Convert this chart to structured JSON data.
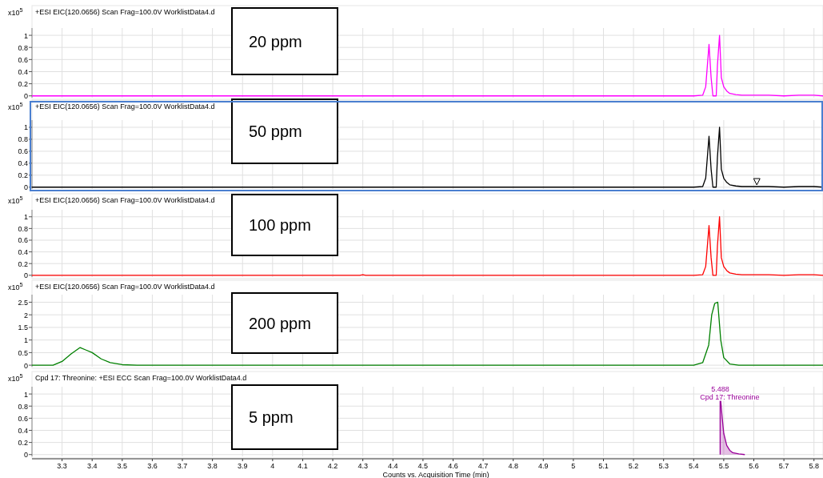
{
  "chart_data": [
    {
      "type": "line",
      "title": "+ESI EIC(120.0656) Scan Frag=100.0V WorklistData4.d",
      "ylabel": "x10$^{5}$",
      "annotations": [
        "20 ppm"
      ],
      "xlim": [
        3.2,
        5.83
      ],
      "xticks": [
        3.3,
        3.4,
        3.5,
        3.6,
        3.7,
        3.8,
        3.9,
        4,
        4.1,
        4.2,
        4.3,
        4.4,
        4.5,
        4.6,
        4.7,
        4.8,
        4.9,
        5,
        5.1,
        5.2,
        5.3,
        5.4,
        5.5,
        5.6,
        5.7,
        5.8
      ],
      "ylim": [
        -0.03,
        1.12
      ],
      "yticks": [
        0,
        0.2,
        0.4,
        0.6,
        0.8,
        1
      ],
      "grid": true,
      "tick_labels": "y",
      "series": [
        {
          "color": "#ff00ff",
          "x": [
            3.2,
            5.4,
            5.43,
            5.44,
            5.451,
            5.458,
            5.464,
            5.475,
            5.479,
            5.486,
            5.492,
            5.5,
            5.51,
            5.52,
            5.54,
            5.56,
            5.6,
            5.65,
            5.7,
            5.75,
            5.8,
            5.83
          ],
          "values": [
            0,
            0,
            0.01,
            0.15,
            0.85,
            0.3,
            0,
            0,
            0.5,
            1,
            0.3,
            0.15,
            0.08,
            0.04,
            0.02,
            0.01,
            0.01,
            0.01,
            0,
            0.01,
            0.01,
            0
          ]
        }
      ]
    },
    {
      "type": "line",
      "title": "+ESI EIC(120.0656) Scan Frag=100.0V WorklistData4.d",
      "ylabel": "x10$^{5}$",
      "annotations": [
        "50 ppm"
      ],
      "xlim": [
        3.2,
        5.83
      ],
      "xticks": [
        3.3,
        3.4,
        3.5,
        3.6,
        3.7,
        3.8,
        3.9,
        4,
        4.1,
        4.2,
        4.3,
        4.4,
        4.5,
        4.6,
        4.7,
        4.8,
        4.9,
        5,
        5.1,
        5.2,
        5.3,
        5.4,
        5.5,
        5.6,
        5.7,
        5.8
      ],
      "ylim": [
        -0.03,
        1.12
      ],
      "yticks": [
        0,
        0.2,
        0.4,
        0.6,
        0.8,
        1
      ],
      "grid": true,
      "tick_labels": "y",
      "series": [
        {
          "color": "#000000",
          "x": [
            3.2,
            5.4,
            5.43,
            5.44,
            5.451,
            5.458,
            5.464,
            5.475,
            5.479,
            5.486,
            5.492,
            5.5,
            5.51,
            5.52,
            5.54,
            5.56,
            5.6,
            5.65,
            5.7,
            5.75,
            5.8,
            5.83
          ],
          "values": [
            0,
            0,
            0.01,
            0.15,
            0.85,
            0.3,
            0,
            0,
            0.5,
            1,
            0.3,
            0.15,
            0.08,
            0.04,
            0.02,
            0.01,
            0.01,
            0.01,
            0,
            0.01,
            0.01,
            0
          ]
        }
      ]
    },
    {
      "type": "line",
      "title": "+ESI EIC(120.0656) Scan Frag=100.0V WorklistData4.d",
      "ylabel": "x10$^{5}$",
      "annotations": [
        "100 ppm"
      ],
      "xlim": [
        3.2,
        5.83
      ],
      "xticks": [
        3.3,
        3.4,
        3.5,
        3.6,
        3.7,
        3.8,
        3.9,
        4,
        4.1,
        4.2,
        4.3,
        4.4,
        4.5,
        4.6,
        4.7,
        4.8,
        4.9,
        5,
        5.1,
        5.2,
        5.3,
        5.4,
        5.5,
        5.6,
        5.7,
        5.8
      ],
      "ylim": [
        -0.03,
        1.12
      ],
      "yticks": [
        0,
        0.2,
        0.4,
        0.6,
        0.8,
        1
      ],
      "grid": true,
      "tick_labels": "y",
      "series": [
        {
          "color": "#ff0000",
          "x": [
            3.2,
            4.29,
            4.3,
            4.31,
            5.4,
            5.43,
            5.44,
            5.451,
            5.458,
            5.464,
            5.475,
            5.479,
            5.486,
            5.492,
            5.5,
            5.51,
            5.52,
            5.54,
            5.56,
            5.6,
            5.65,
            5.7,
            5.75,
            5.8,
            5.83
          ],
          "values": [
            0,
            0,
            0.01,
            0,
            0,
            0.01,
            0.15,
            0.85,
            0.3,
            0,
            0,
            0.5,
            1,
            0.3,
            0.15,
            0.08,
            0.04,
            0.02,
            0.01,
            0.01,
            0.01,
            0,
            0.01,
            0.01,
            0
          ]
        }
      ]
    },
    {
      "type": "line",
      "title": "+ESI EIC(120.0656) Scan Frag=100.0V WorklistData4.d",
      "ylabel": "x10$^{5}$",
      "annotations": [
        "200 ppm"
      ],
      "xlim": [
        3.2,
        5.83
      ],
      "xticks": [
        3.3,
        3.4,
        3.5,
        3.6,
        3.7,
        3.8,
        3.9,
        4,
        4.1,
        4.2,
        4.3,
        4.4,
        4.5,
        4.6,
        4.7,
        4.8,
        4.9,
        5,
        5.1,
        5.2,
        5.3,
        5.4,
        5.5,
        5.6,
        5.7,
        5.8
      ],
      "ylim": [
        -0.06,
        2.8
      ],
      "yticks": [
        0,
        0.5,
        1,
        1.5,
        2,
        2.5
      ],
      "grid": true,
      "tick_labels": "y",
      "series": [
        {
          "color": "#008000",
          "x": [
            3.2,
            3.27,
            3.3,
            3.33,
            3.36,
            3.38,
            3.4,
            3.43,
            3.46,
            3.5,
            3.55,
            3.6,
            5.4,
            5.43,
            5.45,
            5.46,
            5.47,
            5.48,
            5.49,
            5.5,
            5.52,
            5.55,
            5.6,
            5.83
          ],
          "values": [
            0,
            0,
            0.15,
            0.45,
            0.7,
            0.6,
            0.5,
            0.25,
            0.1,
            0.02,
            0,
            0,
            0,
            0.1,
            0.8,
            2,
            2.45,
            2.5,
            1,
            0.3,
            0.05,
            0,
            0,
            0
          ]
        }
      ]
    },
    {
      "type": "area",
      "title": "Cpd 17: Threonine: +ESI ECC Scan Frag=100.0V WorklistData4.d",
      "ylabel": "x10$^{5}$",
      "xlabel": "Counts vs. Acquisition Time (min)",
      "annotations": [
        "5 ppm",
        {
          "text": "5.488",
          "x": 5.488,
          "y": 1
        },
        {
          "text": "Cpd 17: Threonine",
          "x": 5.488,
          "y": 1
        }
      ],
      "xlim": [
        3.2,
        5.83
      ],
      "xticks": [
        3.3,
        3.4,
        3.5,
        3.6,
        3.7,
        3.8,
        3.9,
        4,
        4.1,
        4.2,
        4.3,
        4.4,
        4.5,
        4.6,
        4.7,
        4.8,
        4.9,
        5,
        5.1,
        5.2,
        5.3,
        5.4,
        5.5,
        5.6,
        5.7,
        5.8
      ],
      "ylim": [
        -0.03,
        1.12
      ],
      "yticks": [
        0,
        0.2,
        0.4,
        0.6,
        0.8,
        1
      ],
      "grid": true,
      "series": [
        {
          "color": "#990099",
          "x": [
            5.488,
            5.488,
            5.495,
            5.5,
            5.51,
            5.52,
            5.53,
            5.55,
            5.57
          ],
          "values": [
            0,
            1,
            0.6,
            0.35,
            0.15,
            0.07,
            0.03,
            0.01,
            0
          ]
        }
      ]
    }
  ]
}
